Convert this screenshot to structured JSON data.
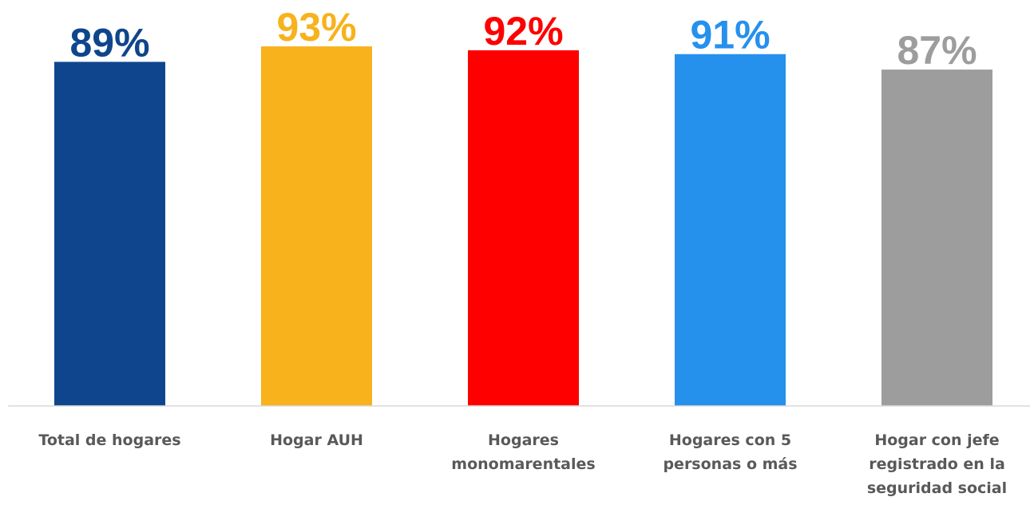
{
  "chart_data": {
    "type": "bar",
    "categories": [
      "Total de hogares",
      "Hogar AUH",
      "Hogares monomarentales",
      "Hogares con 5 personas o más",
      "Hogar con jefe registrado en la seguridad social"
    ],
    "values": [
      89,
      93,
      92,
      91,
      87
    ],
    "value_labels": [
      "89%",
      "93%",
      "92%",
      "91%",
      "87%"
    ],
    "colors": [
      "#0f458c",
      "#f7b21c",
      "#fe0000",
      "#2690ed",
      "#9d9d9d"
    ],
    "ylim": [
      0,
      105
    ]
  }
}
